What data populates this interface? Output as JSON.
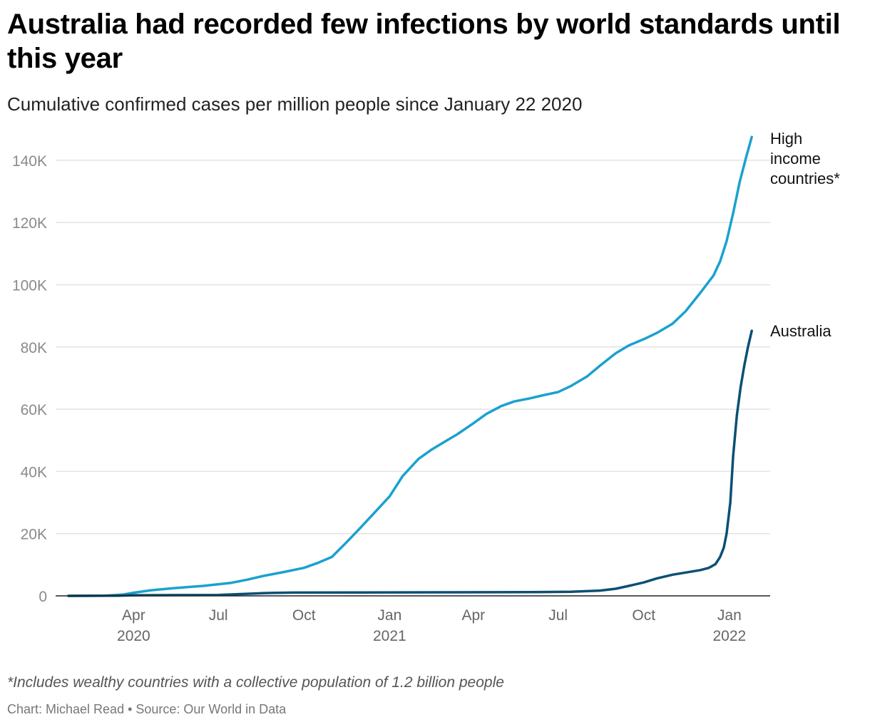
{
  "header": {
    "title": "Australia had recorded few infections by world standards until this year",
    "subtitle": "Cumulative confirmed cases per million people since January 22 2020"
  },
  "footer": {
    "note": "*Includes wealthy countries with a collective population of 1.2 billion people",
    "credit": "Chart: Michael Read • Source: Our World in Data"
  },
  "colors": {
    "high_income": "#1aa1cf",
    "australia": "#0b4f75",
    "grid": "#e3e3e3",
    "axis": "#222222"
  },
  "chart_data": {
    "type": "line",
    "title": "Australia had recorded few infections by world standards until this year",
    "subtitle": "Cumulative confirmed cases per million people since January 22 2020",
    "xlabel": "",
    "ylabel": "",
    "xlim": [
      "2020-01-22",
      "2022-01-31"
    ],
    "ylim": [
      0,
      148000
    ],
    "grid": true,
    "legend": "direct labels at line ends (right)",
    "y_ticks": [
      {
        "value": 0,
        "label": "0"
      },
      {
        "value": 20000,
        "label": "20K"
      },
      {
        "value": 40000,
        "label": "40K"
      },
      {
        "value": 60000,
        "label": "60K"
      },
      {
        "value": 80000,
        "label": "80K"
      },
      {
        "value": 100000,
        "label": "100K"
      },
      {
        "value": 120000,
        "label": "120K"
      },
      {
        "value": 140000,
        "label": "140K"
      }
    ],
    "x_ticks": [
      {
        "date": "2020-04-01",
        "label": "Apr",
        "year": "2020"
      },
      {
        "date": "2020-07-01",
        "label": "Jul",
        "year": ""
      },
      {
        "date": "2020-10-01",
        "label": "Oct",
        "year": ""
      },
      {
        "date": "2021-01-01",
        "label": "Jan",
        "year": "2021"
      },
      {
        "date": "2021-04-01",
        "label": "Apr",
        "year": ""
      },
      {
        "date": "2021-07-01",
        "label": "Jul",
        "year": ""
      },
      {
        "date": "2021-10-01",
        "label": "Oct",
        "year": ""
      },
      {
        "date": "2022-01-01",
        "label": "Jan",
        "year": "2022"
      }
    ],
    "series": [
      {
        "key": "high_income",
        "label_lines": [
          "High",
          "income",
          "countries*"
        ],
        "points": [
          [
            "2020-01-22",
            0
          ],
          [
            "2020-03-01",
            50
          ],
          [
            "2020-03-20",
            400
          ],
          [
            "2020-04-01",
            1000
          ],
          [
            "2020-04-20",
            1800
          ],
          [
            "2020-05-15",
            2500
          ],
          [
            "2020-06-15",
            3200
          ],
          [
            "2020-07-15",
            4200
          ],
          [
            "2020-08-01",
            5200
          ],
          [
            "2020-08-20",
            6500
          ],
          [
            "2020-09-10",
            7700
          ],
          [
            "2020-10-01",
            9000
          ],
          [
            "2020-10-15",
            10500
          ],
          [
            "2020-10-31",
            12500
          ],
          [
            "2020-11-15",
            17000
          ],
          [
            "2020-12-01",
            22000
          ],
          [
            "2020-12-15",
            26500
          ],
          [
            "2021-01-01",
            32000
          ],
          [
            "2021-01-15",
            38500
          ],
          [
            "2021-02-01",
            44000
          ],
          [
            "2021-02-15",
            47000
          ],
          [
            "2021-03-01",
            49500
          ],
          [
            "2021-03-15",
            52000
          ],
          [
            "2021-04-01",
            55500
          ],
          [
            "2021-04-15",
            58500
          ],
          [
            "2021-05-01",
            61000
          ],
          [
            "2021-05-15",
            62500
          ],
          [
            "2021-06-01",
            63500
          ],
          [
            "2021-06-15",
            64500
          ],
          [
            "2021-07-01",
            65500
          ],
          [
            "2021-07-15",
            67500
          ],
          [
            "2021-08-01",
            70500
          ],
          [
            "2021-08-15",
            74000
          ],
          [
            "2021-09-01",
            78000
          ],
          [
            "2021-09-15",
            80500
          ],
          [
            "2021-10-01",
            82500
          ],
          [
            "2021-10-15",
            84500
          ],
          [
            "2021-11-01",
            87500
          ],
          [
            "2021-11-15",
            91500
          ],
          [
            "2021-12-01",
            97500
          ],
          [
            "2021-12-15",
            103000
          ],
          [
            "2021-12-22",
            107500
          ],
          [
            "2021-12-29",
            114000
          ],
          [
            "2022-01-05",
            123000
          ],
          [
            "2022-01-12",
            133000
          ],
          [
            "2022-01-19",
            141000
          ],
          [
            "2022-01-25",
            147500
          ]
        ]
      },
      {
        "key": "australia",
        "label_lines": [
          "Australia"
        ],
        "points": [
          [
            "2020-01-22",
            0
          ],
          [
            "2020-03-15",
            50
          ],
          [
            "2020-04-01",
            200
          ],
          [
            "2020-07-01",
            300
          ],
          [
            "2020-07-20",
            500
          ],
          [
            "2020-08-20",
            900
          ],
          [
            "2020-09-20",
            1050
          ],
          [
            "2020-12-01",
            1100
          ],
          [
            "2021-03-01",
            1150
          ],
          [
            "2021-06-01",
            1200
          ],
          [
            "2021-07-15",
            1300
          ],
          [
            "2021-08-15",
            1700
          ],
          [
            "2021-09-01",
            2300
          ],
          [
            "2021-09-15",
            3200
          ],
          [
            "2021-10-01",
            4300
          ],
          [
            "2021-10-15",
            5600
          ],
          [
            "2021-11-01",
            6800
          ],
          [
            "2021-11-15",
            7500
          ],
          [
            "2021-12-01",
            8300
          ],
          [
            "2021-12-10",
            9000
          ],
          [
            "2021-12-17",
            10200
          ],
          [
            "2021-12-22",
            12500
          ],
          [
            "2021-12-26",
            15500
          ],
          [
            "2021-12-29",
            20000
          ],
          [
            "2022-01-02",
            30000
          ],
          [
            "2022-01-05",
            45000
          ],
          [
            "2022-01-09",
            58000
          ],
          [
            "2022-01-13",
            67000
          ],
          [
            "2022-01-17",
            74000
          ],
          [
            "2022-01-21",
            80000
          ],
          [
            "2022-01-25",
            85200
          ]
        ]
      }
    ]
  }
}
